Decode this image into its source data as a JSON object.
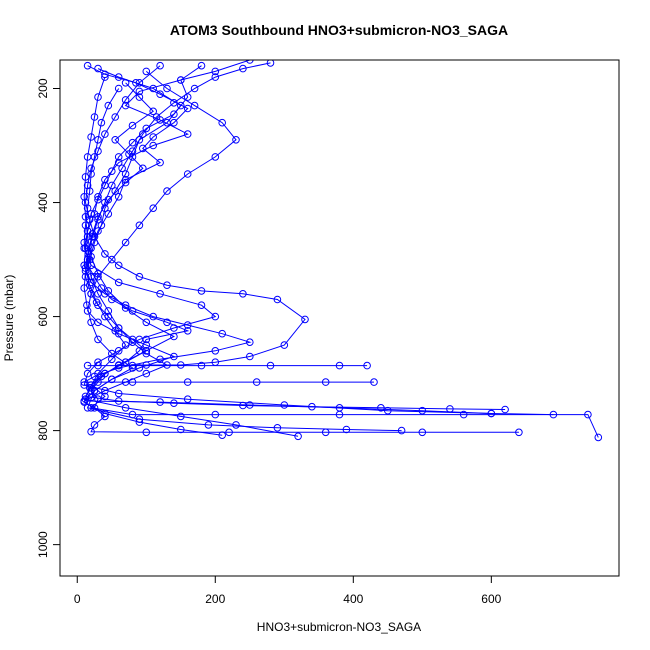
{
  "chart_data": {
    "type": "scatter",
    "title": "ATOM3 Southbound HNO3+submicron-NO3_SAGA",
    "xlabel": "HNO3+submicron-NO3_SAGA",
    "ylabel": "Pressure (mbar)",
    "xlim": [
      -25,
      785
    ],
    "ylim": [
      1055,
      150
    ],
    "y_reversed": true,
    "x_ticks": [
      0,
      200,
      400,
      600
    ],
    "y_ticks": [
      200,
      400,
      600,
      800,
      1000
    ],
    "series_color": "#0000ff",
    "marker": "open-circle",
    "grid": false,
    "legend": "none",
    "series": [
      {
        "profile": 1,
        "x": [
          15,
          40,
          85,
          120,
          160,
          140,
          110,
          95,
          120,
          70,
          60,
          45,
          30,
          20,
          15,
          25,
          35,
          50,
          80,
          130,
          160,
          100,
          90,
          70,
          40,
          30,
          20,
          30,
          25,
          40,
          25,
          20,
          100,
          220,
          360,
          500,
          640
        ],
        "y": [
          160,
          175,
          190,
          210,
          235,
          260,
          285,
          305,
          330,
          360,
          390,
          420,
          450,
          480,
          510,
          530,
          550,
          570,
          590,
          610,
          625,
          640,
          660,
          680,
          700,
          715,
          730,
          745,
          760,
          775,
          790,
          802,
          803,
          803,
          803,
          803,
          803
        ]
      },
      {
        "profile": 2,
        "x": [
          30,
          60,
          110,
          150,
          130,
          90,
          80,
          70,
          55,
          40,
          35,
          25,
          18,
          12,
          20,
          30,
          45,
          60,
          80,
          100,
          70,
          40,
          20,
          40,
          20,
          80,
          200,
          380,
          560,
          740,
          755
        ],
        "y": [
          165,
          180,
          200,
          230,
          260,
          290,
          320,
          350,
          380,
          410,
          440,
          470,
          500,
          530,
          560,
          580,
          600,
          620,
          640,
          660,
          680,
          700,
          720,
          740,
          760,
          772,
          772,
          772,
          772,
          772,
          812
        ]
      },
      {
        "profile": 3,
        "x": [
          250,
          200,
          150,
          90,
          70,
          120,
          160,
          110,
          60,
          40,
          30,
          25,
          15,
          10,
          20,
          60,
          120,
          180,
          200,
          140,
          90,
          60,
          30,
          15,
          10,
          60,
          160,
          300,
          450,
          600,
          690
        ],
        "y": [
          150,
          170,
          185,
          205,
          230,
          255,
          280,
          300,
          330,
          360,
          390,
          420,
          450,
          480,
          510,
          540,
          560,
          580,
          600,
          620,
          640,
          660,
          680,
          700,
          720,
          735,
          745,
          755,
          765,
          770,
          772
        ]
      },
      {
        "profile": 4,
        "x": [
          120,
          90,
          70,
          55,
          40,
          30,
          20,
          15,
          12,
          18,
          25,
          40,
          60,
          90,
          130,
          180,
          240,
          290,
          330,
          300,
          250,
          200,
          150,
          100,
          60,
          30,
          15,
          80,
          180,
          280,
          380,
          420
        ],
        "y": [
          160,
          190,
          220,
          250,
          280,
          310,
          340,
          370,
          400,
          430,
          460,
          490,
          510,
          530,
          545,
          555,
          560,
          570,
          605,
          650,
          670,
          680,
          685,
          685,
          686,
          686,
          686,
          686,
          686,
          686,
          686,
          686
        ]
      },
      {
        "profile": 5,
        "x": [
          180,
          150,
          160,
          140,
          100,
          80,
          60,
          50,
          40,
          30,
          20,
          15,
          12,
          10,
          20,
          40,
          70,
          110,
          160,
          210,
          250,
          200,
          120,
          60,
          25,
          10,
          80,
          160,
          260,
          360,
          430
        ],
        "y": [
          160,
          185,
          215,
          245,
          270,
          295,
          320,
          345,
          370,
          395,
          420,
          450,
          480,
          510,
          540,
          560,
          580,
          600,
          615,
          630,
          645,
          660,
          675,
          690,
          705,
          715,
          715,
          715,
          715,
          715,
          715
        ]
      },
      {
        "profile": 6,
        "x": [
          60,
          45,
          35,
          30,
          25,
          20,
          18,
          15,
          12,
          10,
          15,
          20,
          30,
          45,
          60,
          80,
          100,
          130,
          100,
          70,
          40,
          20,
          10,
          120,
          250,
          380,
          500,
          600
        ],
        "y": [
          200,
          230,
          260,
          290,
          320,
          350,
          380,
          410,
          440,
          470,
          500,
          530,
          560,
          590,
          620,
          645,
          665,
          685,
          700,
          715,
          730,
          742,
          748,
          750,
          755,
          760,
          765,
          770
        ]
      },
      {
        "profile": 7,
        "x": [
          100,
          130,
          170,
          210,
          230,
          200,
          160,
          130,
          110,
          90,
          70,
          50,
          30,
          20,
          15,
          30,
          60,
          100,
          140,
          90,
          50,
          25,
          15,
          90,
          190,
          290,
          390,
          470
        ],
        "y": [
          170,
          200,
          230,
          260,
          290,
          320,
          350,
          380,
          410,
          440,
          470,
          500,
          530,
          560,
          590,
          610,
          630,
          650,
          670,
          690,
          710,
          730,
          760,
          780,
          790,
          795,
          798,
          800
        ]
      },
      {
        "profile": 8,
        "x": [
          40,
          30,
          25,
          20,
          15,
          12,
          10,
          12,
          15,
          20,
          30,
          45,
          70,
          100,
          140,
          100,
          60,
          35,
          20,
          12,
          60,
          140,
          240,
          340,
          440,
          540,
          620
        ],
        "y": [
          180,
          215,
          250,
          285,
          320,
          355,
          390,
          425,
          460,
          495,
          525,
          555,
          585,
          610,
          635,
          660,
          685,
          705,
          725,
          740,
          748,
          752,
          756,
          758,
          760,
          762,
          763
        ]
      },
      {
        "profile": 9,
        "x": [
          280,
          240,
          200,
          170,
          140,
          115,
          95,
          80,
          65,
          50,
          40,
          30,
          22,
          16,
          12,
          10,
          14,
          20,
          30,
          50,
          80,
          50,
          25,
          12,
          70,
          150,
          230,
          320
        ],
        "y": [
          155,
          165,
          180,
          200,
          225,
          250,
          280,
          310,
          340,
          370,
          400,
          430,
          460,
          490,
          520,
          550,
          580,
          610,
          640,
          665,
          690,
          710,
          730,
          745,
          760,
          775,
          790,
          810
        ]
      },
      {
        "profile": 10,
        "x": [
          70,
          90,
          110,
          80,
          55,
          75,
          95,
          70,
          45,
          30,
          22,
          16,
          12,
          18,
          28,
          40,
          55,
          70,
          50,
          30,
          18,
          10,
          40,
          90,
          150,
          210
        ],
        "y": [
          190,
          215,
          240,
          265,
          290,
          315,
          340,
          365,
          395,
          425,
          455,
          485,
          515,
          545,
          575,
          600,
          625,
          650,
          675,
          700,
          725,
          750,
          770,
          785,
          798,
          808
        ]
      }
    ]
  }
}
